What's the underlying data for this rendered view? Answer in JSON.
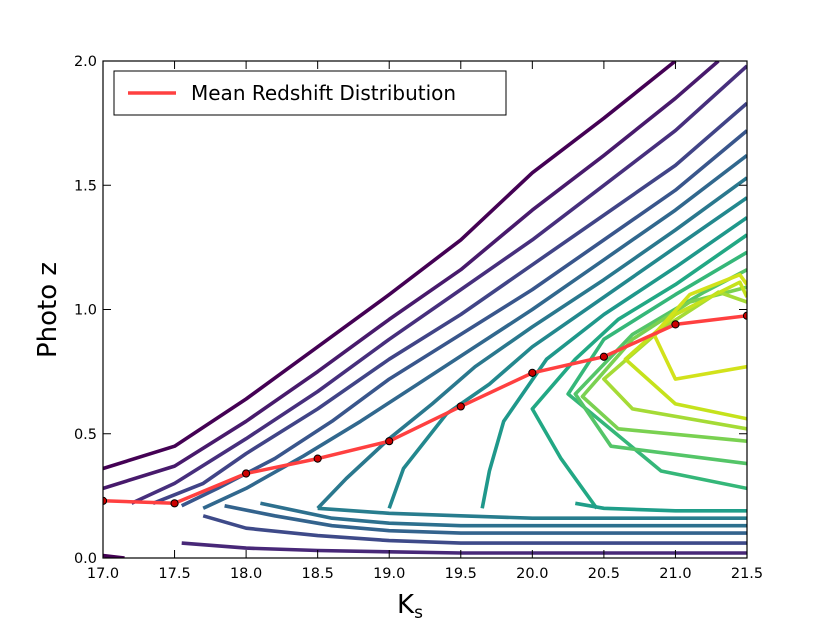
{
  "chart_data": {
    "type": "line",
    "title": "",
    "xlabel": "K",
    "xlabel_subscript": "s",
    "ylabel": "Photo z",
    "xlim": [
      17.0,
      21.5
    ],
    "ylim": [
      0.0,
      2.0
    ],
    "xticks": [
      17.0,
      17.5,
      18.0,
      18.5,
      19.0,
      19.5,
      20.0,
      20.5,
      21.0,
      21.5
    ],
    "xtick_labels": [
      "17.0",
      "17.5",
      "18.0",
      "18.5",
      "19.0",
      "19.5",
      "20.0",
      "20.5",
      "21.0",
      "21.5"
    ],
    "yticks": [
      0.0,
      0.5,
      1.0,
      1.5,
      2.0
    ],
    "ytick_labels": [
      "0.0",
      "0.5",
      "1.0",
      "1.5",
      "2.0"
    ],
    "grid": false,
    "legend": {
      "position": "top-left",
      "entries": [
        "Mean Redshift Distribution"
      ]
    },
    "series": [
      {
        "name": "Mean Redshift Distribution",
        "color": "#ff4040",
        "x": [
          17.0,
          17.5,
          18.0,
          18.5,
          19.0,
          19.5,
          20.0,
          20.5,
          21.0,
          21.5
        ],
        "y": [
          0.23,
          0.22,
          0.34,
          0.4,
          0.47,
          0.61,
          0.745,
          0.81,
          0.94,
          0.975
        ]
      }
    ],
    "contours": {
      "colormap": "viridis",
      "levels": [
        {
          "color": "#440154",
          "x": [
            17.0,
            17.5,
            18.0,
            18.5,
            19.0,
            19.5,
            20.0,
            20.5,
            21.0
          ],
          "y": [
            0.36,
            0.45,
            0.64,
            0.85,
            1.06,
            1.28,
            1.55,
            1.77,
            2.0
          ]
        },
        {
          "color": "#481a6c",
          "x": [
            17.0,
            17.5,
            18.0,
            18.5,
            19.0,
            19.5,
            20.0,
            20.5,
            21.0,
            21.3
          ],
          "y": [
            0.28,
            0.37,
            0.55,
            0.75,
            0.96,
            1.16,
            1.4,
            1.62,
            1.85,
            2.0
          ]
        },
        {
          "color": "#472f7d",
          "x": [
            17.2,
            17.5,
            18.0,
            18.5,
            19.0,
            19.5,
            20.0,
            20.5,
            21.0,
            21.5
          ],
          "y": [
            0.22,
            0.3,
            0.48,
            0.67,
            0.88,
            1.08,
            1.28,
            1.5,
            1.72,
            1.98
          ]
        },
        {
          "color": "#414487",
          "x": [
            17.35,
            17.7,
            18.0,
            18.5,
            19.0,
            19.5,
            20.0,
            20.5,
            21.0,
            21.5
          ],
          "y": [
            0.22,
            0.3,
            0.42,
            0.6,
            0.8,
            0.98,
            1.18,
            1.38,
            1.58,
            1.83
          ]
        },
        {
          "color": "#39568c",
          "x": [
            17.55,
            17.8,
            18.2,
            18.6,
            19.0,
            19.5,
            20.0,
            20.5,
            21.0,
            21.5
          ],
          "y": [
            0.21,
            0.28,
            0.4,
            0.55,
            0.72,
            0.9,
            1.08,
            1.28,
            1.48,
            1.72
          ]
        },
        {
          "color": "#31688e",
          "x": [
            17.7,
            18.0,
            18.4,
            18.8,
            19.2,
            19.6,
            20.0,
            20.5,
            21.0,
            21.5
          ],
          "y": [
            0.2,
            0.28,
            0.41,
            0.55,
            0.7,
            0.85,
            1.0,
            1.2,
            1.4,
            1.62
          ]
        },
        {
          "color": "#2a788e",
          "x": [
            18.5,
            18.7,
            19.0,
            19.3,
            19.6,
            20.0,
            20.5,
            21.0,
            21.5
          ],
          "y": [
            0.2,
            0.32,
            0.48,
            0.62,
            0.77,
            0.93,
            1.12,
            1.32,
            1.53
          ]
        },
        {
          "color": "#23888e",
          "x": [
            19.0,
            19.1,
            19.4,
            19.7,
            20.0,
            20.5,
            21.0,
            21.5
          ],
          "y": [
            0.2,
            0.36,
            0.58,
            0.7,
            0.85,
            1.05,
            1.25,
            1.45
          ]
        },
        {
          "color": "#1f988b",
          "x": [
            19.65,
            19.7,
            19.8,
            20.1,
            20.5,
            21.0,
            21.5
          ],
          "y": [
            0.2,
            0.35,
            0.55,
            0.8,
            0.98,
            1.17,
            1.37
          ]
        },
        {
          "color": "#22a884",
          "x": [
            20.45,
            20.2,
            20.0,
            20.3,
            20.6,
            21.0,
            21.5
          ],
          "y": [
            0.2,
            0.4,
            0.6,
            0.8,
            0.96,
            1.1,
            1.3
          ]
        },
        {
          "color": "#35b779",
          "x": [
            21.5,
            20.9,
            20.25,
            20.5,
            21.0,
            21.5
          ],
          "y": [
            0.28,
            0.35,
            0.66,
            0.88,
            1.06,
            1.23
          ]
        },
        {
          "color": "#54c568",
          "x": [
            21.5,
            20.55,
            20.3,
            20.7,
            21.2,
            21.5
          ],
          "y": [
            0.38,
            0.45,
            0.66,
            0.9,
            1.07,
            1.16
          ]
        },
        {
          "color": "#7ad151",
          "x": [
            21.5,
            20.6,
            20.35,
            20.7,
            21.1,
            21.5
          ],
          "y": [
            0.47,
            0.52,
            0.65,
            0.88,
            1.03,
            1.09
          ]
        },
        {
          "color": "#a5db36",
          "x": [
            21.5,
            20.7,
            20.5,
            20.9,
            21.3,
            21.5
          ],
          "y": [
            0.52,
            0.6,
            0.72,
            0.92,
            1.07,
            1.03
          ]
        },
        {
          "color": "#c5e21c",
          "x": [
            21.5,
            21.0,
            20.65,
            21.0,
            21.45,
            21.5
          ],
          "y": [
            0.56,
            0.62,
            0.8,
            0.98,
            1.11,
            1.05
          ]
        },
        {
          "color": "#d2e21b",
          "x": [
            21.5,
            21.0,
            20.85,
            21.1,
            21.45,
            21.5
          ],
          "y": [
            0.77,
            0.72,
            0.9,
            1.06,
            1.14,
            1.1
          ]
        }
      ],
      "bottom_levels": [
        {
          "color": "#482878",
          "x": [
            17.55,
            18.0,
            18.5,
            19.0,
            19.5,
            20.0,
            20.5,
            21.0,
            21.5
          ],
          "y": [
            0.06,
            0.04,
            0.03,
            0.025,
            0.02,
            0.02,
            0.02,
            0.02,
            0.02
          ]
        },
        {
          "color": "#3e4a89",
          "x": [
            17.7,
            18.0,
            18.5,
            19.0,
            19.5,
            20.0,
            20.5,
            21.0,
            21.5
          ],
          "y": [
            0.17,
            0.12,
            0.09,
            0.07,
            0.06,
            0.06,
            0.06,
            0.06,
            0.06
          ]
        },
        {
          "color": "#33638d",
          "x": [
            17.85,
            18.2,
            18.6,
            19.0,
            19.5,
            20.0,
            20.5,
            21.0,
            21.5
          ],
          "y": [
            0.21,
            0.17,
            0.13,
            0.11,
            0.1,
            0.1,
            0.1,
            0.1,
            0.1
          ]
        },
        {
          "color": "#2d708e",
          "x": [
            18.1,
            18.6,
            19.0,
            19.5,
            20.0,
            20.5,
            21.0,
            21.5
          ],
          "y": [
            0.22,
            0.16,
            0.14,
            0.13,
            0.13,
            0.13,
            0.13,
            0.13
          ]
        },
        {
          "color": "#287d8e",
          "x": [
            18.5,
            19.0,
            19.5,
            20.0,
            20.5,
            21.0,
            21.5
          ],
          "y": [
            0.2,
            0.18,
            0.17,
            0.16,
            0.16,
            0.16,
            0.16
          ]
        },
        {
          "color": "#1f9e89",
          "x": [
            20.3,
            20.5,
            21.0,
            21.5
          ],
          "y": [
            0.22,
            0.2,
            0.19,
            0.19
          ]
        },
        {
          "color": "#440154",
          "x": [
            17.0,
            17.15
          ],
          "y": [
            0.01,
            0.0
          ]
        }
      ]
    }
  }
}
